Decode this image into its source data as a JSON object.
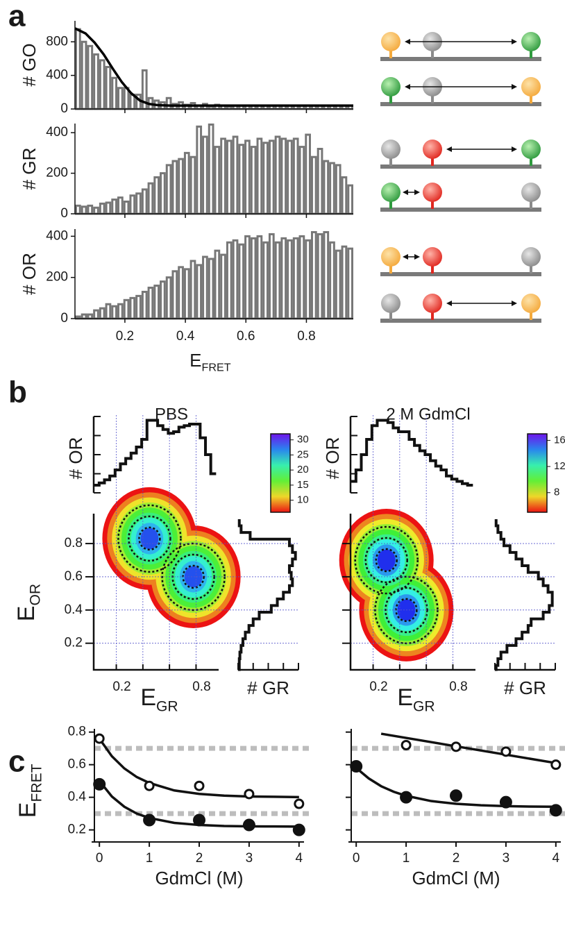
{
  "panel_labels": [
    "a",
    "b",
    "c"
  ],
  "chart_data": [
    {
      "type": "histogram",
      "ylabel": "# GO",
      "color": "#777777",
      "bins": [
        0.035,
        0.055,
        0.075,
        0.095,
        0.115,
        0.135,
        0.155,
        0.175,
        0.195,
        0.215,
        0.235,
        0.255,
        0.275,
        0.295,
        0.315,
        0.335,
        0.355,
        0.375,
        0.395,
        0.415,
        0.435,
        0.455,
        0.475,
        0.495,
        0.515,
        0.535,
        0.555,
        0.575,
        0.595,
        0.615,
        0.635,
        0.655,
        0.675,
        0.695,
        0.715,
        0.735,
        0.755,
        0.775,
        0.795,
        0.815,
        0.835,
        0.855,
        0.875,
        0.895,
        0.915,
        0.935,
        0.955
      ],
      "values": [
        950,
        800,
        750,
        650,
        580,
        500,
        370,
        250,
        250,
        170,
        170,
        460,
        130,
        100,
        80,
        130,
        60,
        80,
        50,
        70,
        40,
        60,
        30,
        50,
        40,
        30,
        40,
        40,
        40,
        40,
        40,
        40,
        40,
        40,
        40,
        40,
        40,
        40,
        40,
        40,
        40,
        40,
        40,
        40,
        40,
        40
      ],
      "fit": {
        "color": "#000000",
        "x": [
          0.035,
          0.07,
          0.1,
          0.13,
          0.16,
          0.19,
          0.22,
          0.25,
          0.28,
          0.31,
          0.35,
          0.955
        ],
        "values": [
          960,
          900,
          790,
          650,
          480,
          320,
          190,
          100,
          60,
          45,
          40,
          40
        ]
      },
      "xlim": [
        0.035,
        0.955
      ],
      "ylim": [
        0,
        1050
      ],
      "xticks": [
        0.2,
        0.4,
        0.6,
        0.8
      ],
      "yticks": [
        0,
        400,
        800
      ],
      "xtick_labels": false
    },
    {
      "type": "histogram",
      "ylabel": "# GR",
      "color": "#777777",
      "bins": [
        0.035,
        0.055,
        0.075,
        0.095,
        0.115,
        0.135,
        0.155,
        0.175,
        0.195,
        0.215,
        0.235,
        0.255,
        0.275,
        0.295,
        0.315,
        0.335,
        0.355,
        0.375,
        0.395,
        0.415,
        0.435,
        0.455,
        0.475,
        0.495,
        0.515,
        0.535,
        0.555,
        0.575,
        0.595,
        0.615,
        0.635,
        0.655,
        0.675,
        0.695,
        0.715,
        0.735,
        0.755,
        0.775,
        0.795,
        0.815,
        0.835,
        0.855,
        0.875,
        0.895,
        0.915,
        0.935,
        0.955
      ],
      "values": [
        40,
        35,
        40,
        30,
        50,
        55,
        70,
        80,
        60,
        90,
        100,
        120,
        150,
        180,
        200,
        240,
        260,
        270,
        300,
        280,
        430,
        380,
        440,
        330,
        370,
        360,
        380,
        340,
        360,
        330,
        370,
        350,
        360,
        380,
        370,
        360,
        370,
        330,
        390,
        280,
        320,
        260,
        250,
        240,
        180,
        140
      ],
      "xlim": [
        0.035,
        0.955
      ],
      "ylim": [
        0,
        445
      ],
      "xticks": [
        0.2,
        0.4,
        0.6,
        0.8
      ],
      "yticks": [
        0,
        200,
        400
      ],
      "xtick_labels": false
    },
    {
      "type": "histogram",
      "ylabel": "# OR",
      "color": "#777777",
      "xlabel": "E",
      "xlabel_sub": "FRET",
      "bins": [
        0.035,
        0.055,
        0.075,
        0.095,
        0.115,
        0.135,
        0.155,
        0.175,
        0.195,
        0.215,
        0.235,
        0.255,
        0.275,
        0.295,
        0.315,
        0.335,
        0.355,
        0.375,
        0.395,
        0.415,
        0.435,
        0.455,
        0.475,
        0.495,
        0.515,
        0.535,
        0.555,
        0.575,
        0.595,
        0.615,
        0.635,
        0.655,
        0.675,
        0.695,
        0.715,
        0.735,
        0.755,
        0.775,
        0.795,
        0.815,
        0.835,
        0.855,
        0.875,
        0.895,
        0.915,
        0.935,
        0.955
      ],
      "values": [
        10,
        20,
        20,
        40,
        50,
        70,
        60,
        70,
        90,
        100,
        110,
        130,
        150,
        160,
        180,
        200,
        230,
        250,
        240,
        280,
        260,
        300,
        290,
        330,
        310,
        370,
        380,
        360,
        400,
        390,
        400,
        370,
        410,
        370,
        390,
        380,
        390,
        400,
        380,
        420,
        410,
        420,
        370,
        330,
        350,
        340
      ],
      "xlim": [
        0.035,
        0.955
      ],
      "ylim": [
        0,
        435
      ],
      "xticks": [
        0.2,
        0.4,
        0.6,
        0.8
      ],
      "yticks": [
        0,
        200,
        400
      ],
      "xtick_labels": true
    },
    {
      "type": "density",
      "title": "PBS",
      "ylabel": "E",
      "ylabel_sub": "OR",
      "xlabel": "E",
      "xlabel_sub": "GR",
      "xlim": [
        0.03,
        0.97
      ],
      "ylim": [
        0.04,
        0.98
      ],
      "xticks": [
        0.2,
        0.4,
        0.6,
        0.8
      ],
      "xtick_label_shown": [
        true,
        false,
        false,
        true
      ],
      "yticks": [
        0.2,
        0.4,
        0.6,
        0.8
      ],
      "ytick_label_shown": [
        true,
        true,
        true,
        true
      ],
      "peaks": {
        "x": [
          0.45,
          0.78
        ],
        "y": [
          0.83,
          0.6
        ],
        "values": [
          31,
          31
        ]
      },
      "clim": [
        6,
        32
      ],
      "cticks": [
        10,
        15,
        20,
        25,
        30
      ],
      "top_hist": {
        "label": "# OR",
        "x": [
          0.05,
          0.09,
          0.13,
          0.17,
          0.21,
          0.25,
          0.29,
          0.33,
          0.37,
          0.41,
          0.45,
          0.49,
          0.53,
          0.57,
          0.61,
          0.65,
          0.69,
          0.73,
          0.77,
          0.81,
          0.85,
          0.89,
          0.93
        ],
        "values": [
          0.1,
          0.13,
          0.17,
          0.22,
          0.3,
          0.38,
          0.45,
          0.52,
          0.6,
          0.7,
          0.95,
          0.95,
          0.88,
          0.83,
          0.78,
          0.8,
          0.86,
          0.88,
          0.9,
          0.9,
          0.72,
          0.5,
          0.25
        ]
      },
      "side_hist": {
        "label": "# GR",
        "y": [
          0.05,
          0.09,
          0.13,
          0.17,
          0.21,
          0.25,
          0.29,
          0.33,
          0.37,
          0.41,
          0.45,
          0.49,
          0.53,
          0.57,
          0.61,
          0.65,
          0.69,
          0.73,
          0.77,
          0.81,
          0.85,
          0.89,
          0.93
        ],
        "values": [
          0.02,
          0.02,
          0.03,
          0.05,
          0.08,
          0.12,
          0.18,
          0.25,
          0.35,
          0.55,
          0.65,
          0.75,
          0.85,
          0.9,
          0.88,
          0.85,
          0.9,
          0.95,
          0.9,
          0.85,
          0.2,
          0.05,
          0.02
        ]
      }
    },
    {
      "type": "density",
      "title": "2 M GdmCl",
      "xlabel": "E",
      "xlabel_sub": "GR",
      "xlim": [
        0.03,
        0.97
      ],
      "ylim": [
        0.04,
        0.98
      ],
      "xticks": [
        0.2,
        0.4,
        0.6,
        0.8
      ],
      "xtick_label_shown": [
        true,
        false,
        false,
        true
      ],
      "yticks": [
        0.2,
        0.4,
        0.6,
        0.8
      ],
      "ytick_label_shown": [
        false,
        false,
        false,
        false
      ],
      "peaks": {
        "x": [
          0.3,
          0.45
        ],
        "y": [
          0.7,
          0.4
        ],
        "values": [
          17,
          17
        ]
      },
      "clim": [
        5,
        17
      ],
      "cticks": [
        8,
        12,
        16
      ],
      "top_hist": {
        "label": "# OR",
        "x": [
          0.05,
          0.09,
          0.13,
          0.17,
          0.21,
          0.25,
          0.29,
          0.33,
          0.37,
          0.41,
          0.45,
          0.49,
          0.53,
          0.57,
          0.61,
          0.65,
          0.69,
          0.73,
          0.77,
          0.81,
          0.85,
          0.89,
          0.93
        ],
        "values": [
          0.15,
          0.3,
          0.5,
          0.7,
          0.88,
          0.95,
          0.95,
          0.92,
          0.85,
          0.8,
          0.8,
          0.7,
          0.62,
          0.55,
          0.5,
          0.42,
          0.35,
          0.3,
          0.22,
          0.18,
          0.15,
          0.12,
          0.1
        ]
      },
      "side_hist": {
        "label": "# GR",
        "y": [
          0.05,
          0.09,
          0.13,
          0.17,
          0.21,
          0.25,
          0.29,
          0.33,
          0.37,
          0.41,
          0.45,
          0.49,
          0.53,
          0.57,
          0.61,
          0.65,
          0.69,
          0.73,
          0.77,
          0.81,
          0.85,
          0.89,
          0.93
        ],
        "values": [
          0.02,
          0.05,
          0.1,
          0.2,
          0.35,
          0.45,
          0.55,
          0.6,
          0.8,
          0.9,
          0.95,
          0.95,
          0.88,
          0.8,
          0.72,
          0.55,
          0.45,
          0.35,
          0.25,
          0.15,
          0.1,
          0.05,
          0.02
        ]
      }
    },
    {
      "type": "scatter",
      "ylabel": "E",
      "ylabel_sub": "FRET",
      "xlabel": "GdmCl (M)",
      "xlim": [
        -0.1,
        4.1
      ],
      "ylim": [
        0.16,
        0.82
      ],
      "xticks": [
        0,
        1,
        2,
        3,
        4
      ],
      "yticks": [
        0.2,
        0.4,
        0.6,
        0.8
      ],
      "ytick_labels": true,
      "reference_lines": [
        0.7,
        0.3
      ],
      "series": [
        {
          "marker": "open",
          "x": [
            0,
            1,
            2,
            3,
            4
          ],
          "values": [
            0.76,
            0.47,
            0.47,
            0.42,
            0.36
          ]
        },
        {
          "marker": "filled",
          "x": [
            0,
            1,
            2,
            3,
            4
          ],
          "values": [
            0.48,
            0.26,
            0.26,
            0.23,
            0.2
          ]
        }
      ],
      "fits": [
        {
          "x": [
            0,
            0.25,
            0.5,
            0.75,
            1,
            1.5,
            2,
            2.5,
            3,
            3.5,
            4
          ],
          "values": [
            0.76,
            0.652,
            0.577,
            0.524,
            0.488,
            0.442,
            0.421,
            0.41,
            0.405,
            0.403,
            0.401
          ]
        },
        {
          "x": [
            0,
            0.25,
            0.5,
            0.75,
            1,
            1.5,
            2,
            2.5,
            3,
            3.5,
            4
          ],
          "values": [
            0.5,
            0.405,
            0.342,
            0.3,
            0.273,
            0.243,
            0.23,
            0.224,
            0.222,
            0.221,
            0.22
          ]
        }
      ]
    },
    {
      "type": "scatter",
      "xlabel": "GdmCl (M)",
      "xlim": [
        -0.1,
        4.1
      ],
      "ylim": [
        0.16,
        0.82
      ],
      "xticks": [
        0,
        1,
        2,
        3,
        4
      ],
      "yticks": [
        0.2,
        0.4,
        0.6,
        0.8
      ],
      "ytick_labels": false,
      "reference_lines": [
        0.7,
        0.3
      ],
      "series": [
        {
          "marker": "open",
          "x": [
            1,
            2,
            3,
            4
          ],
          "values": [
            0.72,
            0.71,
            0.68,
            0.6
          ]
        },
        {
          "marker": "filled",
          "x": [
            0,
            1,
            2,
            3,
            4
          ],
          "values": [
            0.59,
            0.4,
            0.41,
            0.37,
            0.32
          ]
        }
      ],
      "fits": [
        {
          "x": [
            0.5,
            4
          ],
          "values": [
            0.79,
            0.61
          ]
        },
        {
          "x": [
            0,
            0.25,
            0.5,
            0.75,
            1,
            1.5,
            2,
            2.5,
            3,
            3.5,
            4
          ],
          "values": [
            0.58,
            0.516,
            0.468,
            0.434,
            0.409,
            0.377,
            0.36,
            0.351,
            0.346,
            0.343,
            0.342
          ]
        }
      ]
    }
  ]
}
